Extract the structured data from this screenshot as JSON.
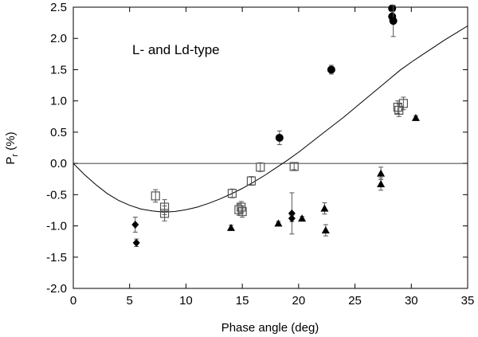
{
  "chart_data": {
    "type": "scatter",
    "title": "",
    "annotation": "L- and Ld-type",
    "xlabel": "Phase angle (deg)",
    "ylabel_main": "P",
    "ylabel_sub": "r",
    "ylabel_unit": " (%)",
    "xlim": [
      0,
      35
    ],
    "ylim": [
      -2.0,
      2.5
    ],
    "x_ticks": [
      0,
      5,
      10,
      15,
      20,
      25,
      30,
      35
    ],
    "x_tick_labels": [
      "0",
      "5",
      "10",
      "15",
      "20",
      "25",
      "30",
      "35"
    ],
    "y_ticks": [
      -2.0,
      -1.5,
      -1.0,
      -0.5,
      0.0,
      0.5,
      1.0,
      1.5,
      2.0,
      2.5
    ],
    "y_tick_labels": [
      "-2.0",
      "-1.5",
      "-1.0",
      "-0.5",
      "0.0",
      "0.5",
      "1.0",
      "1.5",
      "2.0",
      "2.5"
    ],
    "grid": false,
    "legend": "none",
    "zero_line": 0,
    "series": [
      {
        "name": "filled circles",
        "marker": "circle",
        "points": [
          {
            "x": 18.3,
            "y": 0.41,
            "err": 0.11
          },
          {
            "x": 22.9,
            "y": 1.5,
            "err": 0.07
          },
          {
            "x": 28.3,
            "y": 2.48,
            "err": 0.05
          },
          {
            "x": 28.3,
            "y": 2.35,
            "err": 0.08
          },
          {
            "x": 28.4,
            "y": 2.28,
            "err": 0.25
          }
        ]
      },
      {
        "name": "open squares",
        "marker": "square",
        "points": [
          {
            "x": 7.3,
            "y": -0.52,
            "err": 0.1
          },
          {
            "x": 8.1,
            "y": -0.7,
            "err": 0.12
          },
          {
            "x": 8.1,
            "y": -0.8,
            "err": 0.12
          },
          {
            "x": 14.1,
            "y": -0.48,
            "err": 0.07
          },
          {
            "x": 14.7,
            "y": -0.74,
            "err": 0.09
          },
          {
            "x": 14.9,
            "y": -0.7,
            "err": 0.09
          },
          {
            "x": 15.0,
            "y": -0.77,
            "err": 0.09
          },
          {
            "x": 15.8,
            "y": -0.28,
            "err": 0.07
          },
          {
            "x": 16.6,
            "y": -0.06,
            "err": 0.07
          },
          {
            "x": 19.6,
            "y": -0.05,
            "err": 0.05
          },
          {
            "x": 28.8,
            "y": 0.9,
            "err": 0.1
          },
          {
            "x": 28.9,
            "y": 0.85,
            "err": 0.1
          },
          {
            "x": 29.3,
            "y": 0.96,
            "err": 0.1
          }
        ]
      },
      {
        "name": "filled diamonds",
        "marker": "diamond",
        "points": [
          {
            "x": 5.5,
            "y": -0.98,
            "err": 0.12
          },
          {
            "x": 5.6,
            "y": -1.27,
            "err": 0.06
          },
          {
            "x": 19.4,
            "y": -0.8,
            "err": 0.33
          },
          {
            "x": 19.4,
            "y": -0.88,
            "err": 0.05
          }
        ]
      },
      {
        "name": "filled triangles",
        "marker": "triangle",
        "points": [
          {
            "x": 14.0,
            "y": -1.03,
            "err": 0.04
          },
          {
            "x": 18.2,
            "y": -0.96,
            "err": 0.03
          },
          {
            "x": 20.3,
            "y": -0.88,
            "err": 0.03
          },
          {
            "x": 22.3,
            "y": -0.72,
            "err": 0.09
          },
          {
            "x": 22.4,
            "y": -1.07,
            "err": 0.09
          },
          {
            "x": 27.3,
            "y": -0.16,
            "err": 0.1
          },
          {
            "x": 27.3,
            "y": -0.33,
            "err": 0.1
          },
          {
            "x": 30.4,
            "y": 0.73,
            "err": 0.03
          }
        ]
      }
    ],
    "fit_curve": {
      "name": "phase curve fit",
      "x": [
        0,
        1,
        2,
        3,
        4,
        5,
        6,
        7,
        8,
        9,
        10,
        11,
        12,
        13,
        14,
        15,
        16,
        17,
        18,
        19,
        20,
        21,
        22,
        23,
        24,
        25,
        26,
        27,
        28,
        29,
        30,
        31,
        32,
        33,
        34,
        35
      ],
      "y": [
        0.0,
        -0.18,
        -0.34,
        -0.48,
        -0.59,
        -0.67,
        -0.73,
        -0.76,
        -0.78,
        -0.77,
        -0.74,
        -0.7,
        -0.64,
        -0.57,
        -0.49,
        -0.4,
        -0.3,
        -0.19,
        -0.07,
        0.05,
        0.18,
        0.32,
        0.46,
        0.6,
        0.74,
        0.89,
        1.04,
        1.19,
        1.34,
        1.49,
        1.62,
        1.74,
        1.86,
        1.98,
        2.09,
        2.2
      ]
    }
  }
}
